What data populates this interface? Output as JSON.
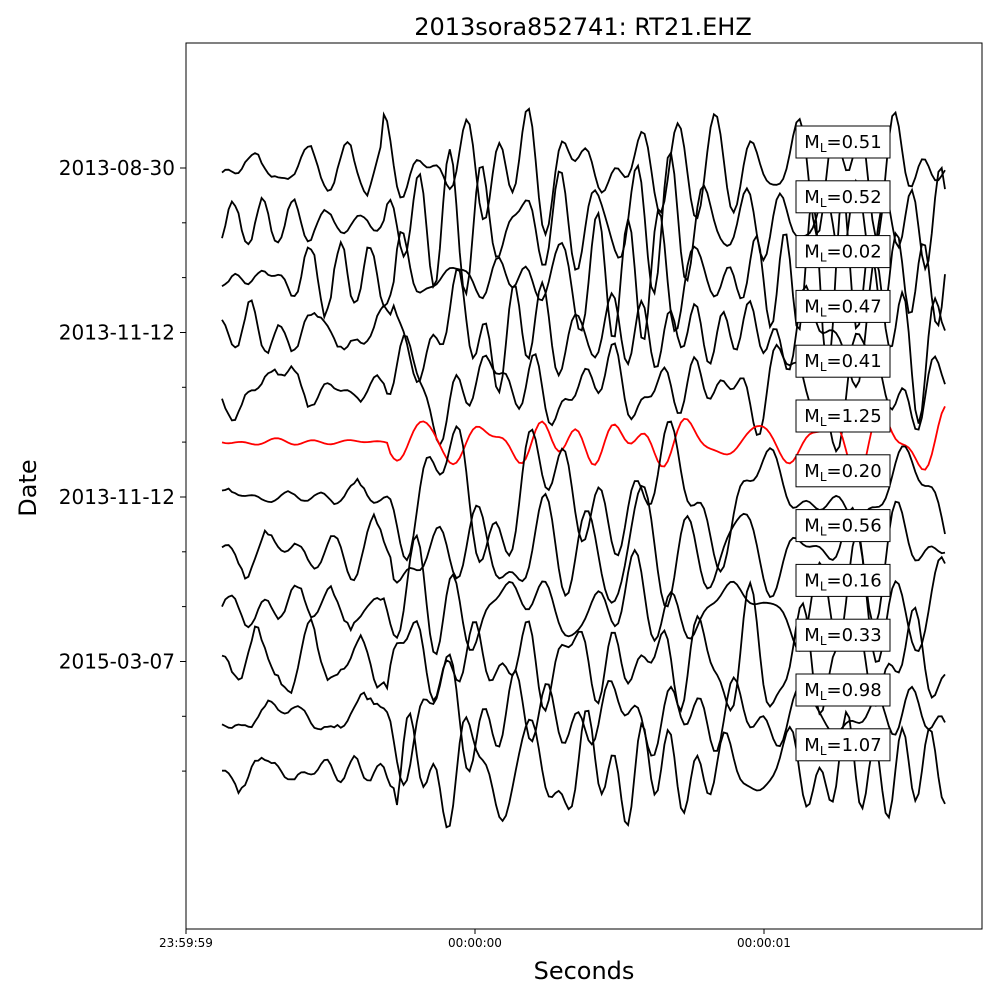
{
  "chart_data": {
    "type": "line",
    "title": "2013sora852741: RT21.EHZ",
    "xlabel": "Seconds",
    "ylabel": "Date",
    "x_ticks": [
      "23:59:59",
      "00:00:00",
      "00:00:01"
    ],
    "y_ticks": [
      "2013-08-30",
      "2013-11-12",
      "2013-11-12",
      "2015-03-07"
    ],
    "series": [
      {
        "label": "M_L=0.51",
        "magnitude_prefix": "M",
        "magnitude_sub": "L",
        "magnitude_value": "=0.51",
        "color": "#000000",
        "seed": 11
      },
      {
        "label": "M_L=0.52",
        "magnitude_prefix": "M",
        "magnitude_sub": "L",
        "magnitude_value": "=0.52",
        "color": "#000000",
        "seed": 23
      },
      {
        "label": "M_L=0.02",
        "magnitude_prefix": "M",
        "magnitude_sub": "L",
        "magnitude_value": "=0.02",
        "color": "#000000",
        "seed": 37
      },
      {
        "label": "M_L=0.47",
        "magnitude_prefix": "M",
        "magnitude_sub": "L",
        "magnitude_value": "=0.47",
        "color": "#000000",
        "seed": 41
      },
      {
        "label": "M_L=0.41",
        "magnitude_prefix": "M",
        "magnitude_sub": "L",
        "magnitude_value": "=0.41",
        "color": "#000000",
        "seed": 53
      },
      {
        "label": "M_L=1.25",
        "magnitude_prefix": "M",
        "magnitude_sub": "L",
        "magnitude_value": "=1.25",
        "color": "#ff0000",
        "seed": 67
      },
      {
        "label": "M_L=0.20",
        "magnitude_prefix": "M",
        "magnitude_sub": "L",
        "magnitude_value": "=0.20",
        "color": "#000000",
        "seed": 71
      },
      {
        "label": "M_L=0.56",
        "magnitude_prefix": "M",
        "magnitude_sub": "L",
        "magnitude_value": "=0.56",
        "color": "#000000",
        "seed": 83
      },
      {
        "label": "M_L=0.16",
        "magnitude_prefix": "M",
        "magnitude_sub": "L",
        "magnitude_value": "=0.16",
        "color": "#000000",
        "seed": 97
      },
      {
        "label": "M_L=0.33",
        "magnitude_prefix": "M",
        "magnitude_sub": "L",
        "magnitude_value": "=0.33",
        "color": "#000000",
        "seed": 101
      },
      {
        "label": "M_L=0.98",
        "magnitude_prefix": "M",
        "magnitude_sub": "L",
        "magnitude_value": "=0.98",
        "color": "#000000",
        "seed": 113
      },
      {
        "label": "M_L=1.07",
        "magnitude_prefix": "M",
        "magnitude_sub": "L",
        "magnitude_value": "=1.07",
        "color": "#000000",
        "seed": 127
      }
    ],
    "highlighted_series": "M_L=1.25",
    "grid": false,
    "legend": "none"
  }
}
